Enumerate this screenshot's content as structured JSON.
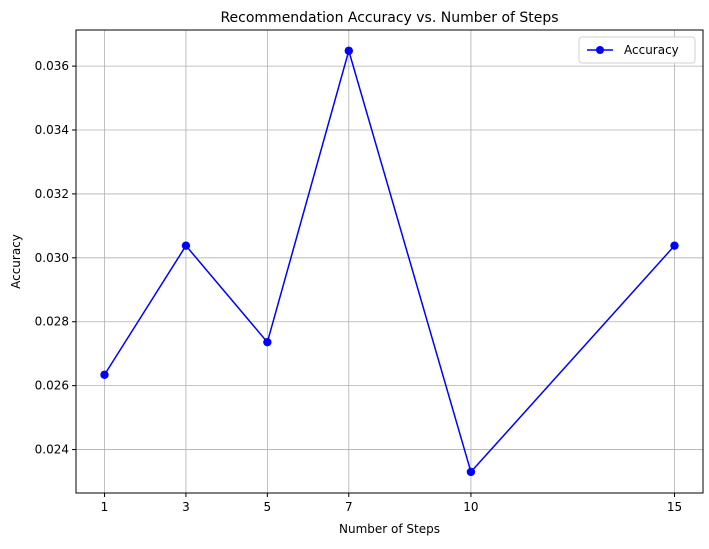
{
  "chart_data": {
    "type": "line",
    "title": "Recommendation Accuracy vs. Number of Steps",
    "xlabel": "Number of Steps",
    "ylabel": "Accuracy",
    "x": [
      1,
      3,
      5,
      7,
      10,
      15
    ],
    "series": [
      {
        "name": "Accuracy",
        "color": "#0000ff",
        "marker": "circle",
        "values": [
          0.02634,
          0.03038,
          0.02736,
          0.03648,
          0.0233,
          0.03038
        ]
      }
    ],
    "xticks": [
      1,
      3,
      5,
      7,
      10,
      15
    ],
    "xtick_labels": [
      "1",
      "3",
      "5",
      "7",
      "10",
      "15"
    ],
    "yticks": [
      0.024,
      0.026,
      0.028,
      0.03,
      0.032,
      0.034,
      0.036
    ],
    "ytick_labels": [
      "0.024",
      "0.026",
      "0.028",
      "0.030",
      "0.032",
      "0.034",
      "0.036"
    ],
    "xlim": [
      0.3,
      15.7
    ],
    "ylim": [
      0.02264,
      0.03713
    ],
    "grid": true,
    "legend_position": "top-right"
  }
}
